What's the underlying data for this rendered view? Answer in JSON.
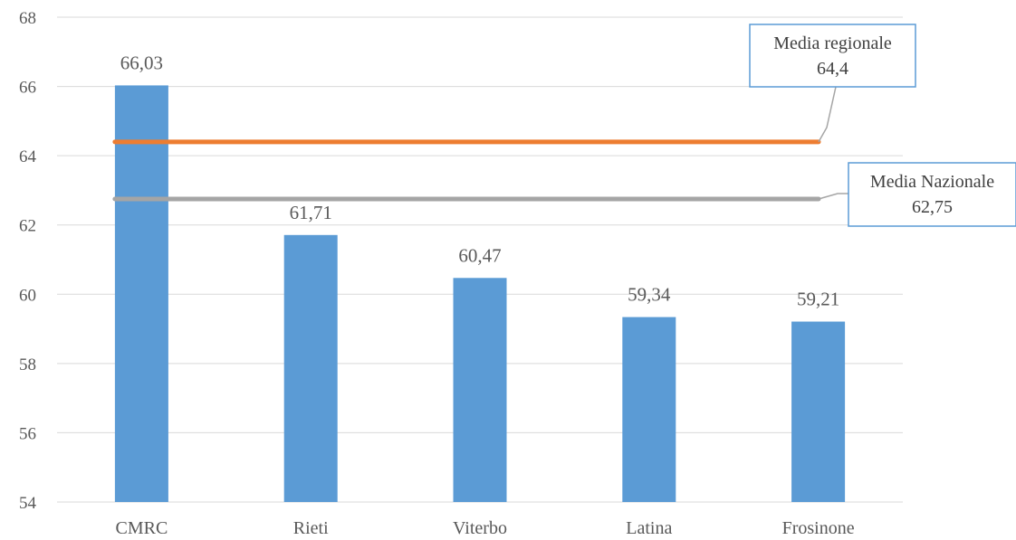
{
  "chart_data": {
    "type": "bar",
    "categories": [
      "CMRC",
      "Rieti",
      "Viterbo",
      "Latina",
      "Frosinone"
    ],
    "series": [
      {
        "values": [
          66.03,
          61.71,
          60.47,
          59.34,
          59.21
        ],
        "labels": [
          "66,03",
          "61,71",
          "60,47",
          "59,34",
          "59,21"
        ]
      }
    ],
    "ylim": [
      54,
      68
    ],
    "yticks": [
      54,
      56,
      58,
      60,
      62,
      64,
      66,
      68
    ],
    "ytick_labels": [
      "54",
      "56",
      "58",
      "60",
      "62",
      "64",
      "66",
      "68"
    ],
    "grid": true,
    "reference_lines": [
      {
        "name": "Media regionale",
        "value": 64.4,
        "value_label": "64,4",
        "color": "#ed7d31"
      },
      {
        "name": "Media Nazionale",
        "value": 62.75,
        "value_label": "62,75",
        "color": "#a5a5a5"
      }
    ],
    "bar_color": "#5b9bd5",
    "callout_border_color": "#5b9bd5"
  }
}
